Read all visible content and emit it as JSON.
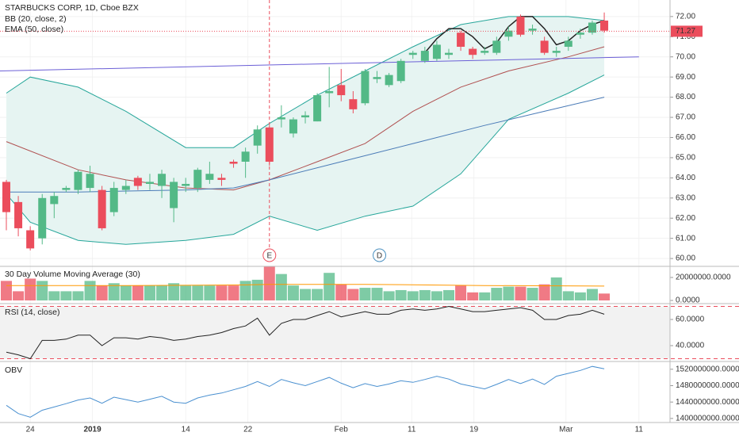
{
  "chart_data": [
    {
      "type": "candlestick",
      "title": "STARBUCKS CORP, 1D, Cboe BZX",
      "legend": [
        "BB (20, close, 2)",
        "EMA (50, close)"
      ],
      "up_color": "#53b987",
      "down_color": "#eb4d5c",
      "open": [
        63.8,
        62.8,
        61.4,
        61.0,
        62.7,
        63.4,
        63.4,
        63.5,
        63.4,
        62.3,
        63.4,
        64.0,
        63.7,
        63.6,
        62.5,
        63.6,
        63.5,
        63.9,
        64.0,
        64.8,
        64.8,
        65.6,
        66.5,
        66.9,
        66.2,
        67.0,
        66.8,
        68.2,
        68.6,
        67.9,
        67.7,
        68.9,
        68.6,
        68.8,
        70.1,
        69.8,
        69.9,
        70.1,
        71.2,
        70.4,
        70.2,
        70.2,
        71.0,
        72.0,
        71.3,
        70.8,
        70.2,
        70.5,
        71.1,
        71.2,
        71.8
      ],
      "high": [
        63.9,
        63.1,
        61.6,
        63.2,
        63.3,
        63.6,
        64.4,
        64.6,
        63.6,
        63.8,
        63.9,
        64.1,
        64.2,
        64.4,
        64.0,
        64.0,
        64.5,
        64.8,
        64.2,
        64.9,
        65.5,
        66.6,
        66.6,
        67.6,
        67.0,
        67.3,
        68.2,
        69.5,
        69.4,
        68.3,
        69.4,
        69.3,
        69.2,
        69.9,
        70.3,
        70.5,
        70.8,
        70.4,
        71.3,
        70.5,
        70.5,
        71.0,
        71.5,
        72.1,
        71.6,
        71.0,
        70.5,
        71.0,
        71.4,
        71.8,
        72.2
      ],
      "low": [
        61.4,
        61.1,
        60.4,
        60.7,
        62.0,
        63.3,
        63.2,
        63.3,
        61.4,
        62.1,
        63.2,
        63.4,
        63.4,
        63.0,
        61.8,
        63.3,
        63.3,
        63.7,
        63.6,
        64.5,
        64.0,
        65.2,
        64.6,
        66.5,
        66.0,
        66.7,
        66.8,
        67.5,
        67.8,
        67.2,
        67.6,
        68.7,
        68.5,
        68.7,
        69.9,
        69.7,
        69.8,
        69.9,
        70.3,
        69.9,
        70.1,
        70.1,
        70.8,
        71.0,
        71.1,
        70.1,
        70.0,
        70.3,
        70.9,
        71.1,
        71.2
      ],
      "close": [
        62.3,
        61.5,
        60.5,
        63.0,
        63.1,
        63.5,
        64.3,
        64.2,
        61.5,
        63.5,
        63.6,
        63.6,
        63.8,
        64.2,
        63.8,
        63.7,
        64.4,
        64.2,
        63.9,
        64.7,
        65.3,
        66.4,
        64.8,
        67.0,
        66.9,
        67.1,
        68.1,
        68.3,
        68.1,
        67.4,
        69.3,
        69.0,
        69.1,
        69.8,
        70.2,
        70.3,
        70.6,
        70.2,
        70.5,
        70.1,
        70.3,
        70.8,
        71.3,
        71.1,
        71.4,
        70.2,
        70.3,
        70.8,
        71.2,
        71.7,
        71.3
      ],
      "band": {
        "color": "#26a69a",
        "fill": "#e6f4f2",
        "x": [
          0,
          2,
          6,
          10,
          15,
          19,
          22,
          26,
          30,
          34,
          38,
          42,
          47,
          50
        ],
        "upper": [
          68.2,
          69.0,
          68.5,
          67.3,
          65.5,
          65.5,
          66.7,
          68.1,
          69.3,
          70.5,
          71.6,
          72.0,
          72.0,
          71.8
        ],
        "lower": [
          63.2,
          61.8,
          60.9,
          60.7,
          60.9,
          61.2,
          62.1,
          61.4,
          62.1,
          62.6,
          64.2,
          66.9,
          68.2,
          69.1
        ]
      },
      "overlays": [
        {
          "color": "#b05050",
          "x": [
            0,
            6,
            10,
            15,
            19,
            22,
            26,
            30,
            34,
            38,
            42,
            47,
            50
          ],
          "values": [
            65.8,
            64.4,
            63.9,
            63.5,
            63.4,
            63.9,
            64.8,
            65.7,
            67.3,
            68.5,
            69.3,
            70.0,
            70.5
          ]
        },
        {
          "color": "#4a7bb7",
          "x": [
            0,
            6,
            15,
            19,
            22,
            28,
            34,
            40,
            45,
            50
          ],
          "values": [
            63.3,
            63.3,
            63.4,
            63.5,
            63.9,
            64.8,
            65.7,
            66.6,
            67.3,
            68.0
          ]
        },
        {
          "color": "#6b5fd6",
          "x": [
            -0.53,
            52.9
          ],
          "values": [
            69.3,
            70.0
          ]
        },
        {
          "color": "#222222",
          "x": [
            35,
            36,
            37,
            38,
            39,
            40,
            41,
            42,
            43,
            44,
            45,
            46,
            47,
            48,
            49,
            50
          ],
          "values": [
            70.2,
            70.9,
            71.4,
            71.4,
            71.0,
            70.4,
            70.7,
            71.5,
            72.0,
            72.0,
            71.4,
            70.6,
            70.8,
            71.3,
            71.6,
            71.8
          ]
        }
      ],
      "last_price": 71.27,
      "last_color": "#eb4d5c",
      "events": [
        {
          "label": "E",
          "x": 22,
          "color": "#eb4d5c"
        },
        {
          "label": "D",
          "x": 31.2,
          "color": "#4a90c0"
        }
      ],
      "ylim": [
        59.65,
        72.82
      ],
      "yticks": [
        {
          "value": 60,
          "label": "60.00"
        },
        {
          "value": 61,
          "label": "61.00"
        },
        {
          "value": 62,
          "label": "62.00"
        },
        {
          "value": 63,
          "label": "63.00"
        },
        {
          "value": 64,
          "label": "64.00"
        },
        {
          "value": 65,
          "label": "65.00"
        },
        {
          "value": 66,
          "label": "66.00"
        },
        {
          "value": 67,
          "label": "67.00"
        },
        {
          "value": 68,
          "label": "68.00"
        },
        {
          "value": 69,
          "label": "69.00"
        },
        {
          "value": 70,
          "label": "70.00"
        },
        {
          "value": 71,
          "label": "71.00"
        },
        {
          "value": 72,
          "label": "72.00"
        }
      ]
    },
    {
      "type": "bar",
      "title": "30 Day Volume Moving Average (30)",
      "values": [
        17000000,
        8000000,
        19000000,
        17000000,
        8000000,
        8000000,
        8000000,
        17000000,
        13000000,
        15000000,
        13000000,
        13000000,
        13000000,
        13000000,
        15000000,
        13000000,
        13000000,
        13000000,
        13000000,
        13000000,
        17000000,
        18000000,
        30000000,
        23000000,
        13000000,
        10000000,
        10000000,
        24000000,
        14000000,
        10000000,
        11000000,
        11000000,
        8000000,
        9000000,
        8000000,
        9000000,
        8000000,
        9000000,
        13000000,
        7000000,
        7000000,
        11000000,
        12000000,
        12000000,
        11000000,
        14000000,
        20000000,
        8000000,
        7000000,
        10000000,
        6000000
      ],
      "ma": {
        "color": "#ff9800",
        "x": [
          0,
          10,
          20,
          22,
          30,
          40,
          50
        ],
        "values": [
          13000000,
          13000000,
          13500000,
          14000000,
          14000000,
          13000000,
          12500000
        ]
      },
      "ylim": [
        -2070000,
        28970000
      ],
      "yticks": [
        {
          "value": 0,
          "label": "0.0000"
        },
        {
          "value": 20000000,
          "label": "20000000.0000"
        }
      ]
    },
    {
      "type": "line",
      "title": "RSI (14, close)",
      "color": "#222222",
      "values": [
        35,
        33,
        30,
        44,
        44,
        45,
        48,
        48,
        40,
        46,
        46,
        45,
        47,
        46,
        44,
        45,
        47,
        48,
        50,
        53,
        55,
        61,
        48,
        57,
        60,
        60,
        63,
        66,
        62,
        64,
        66,
        64,
        64,
        67,
        68,
        67,
        68,
        70,
        68,
        66,
        66,
        67,
        68,
        69,
        67,
        60,
        60,
        63,
        64,
        67,
        64
      ],
      "levels": [
        70,
        30
      ],
      "level_color": "#eb4d5c",
      "fill": "#f2f2f2",
      "ylim": [
        28.5,
        71.5
      ],
      "yticks": [
        {
          "value": 40,
          "label": "40.0000"
        },
        {
          "value": 60,
          "label": "60.0000"
        }
      ]
    },
    {
      "type": "line",
      "title": "OBV",
      "color": "#4a90d0",
      "values": [
        1432,
        1412,
        1403,
        1420,
        1428,
        1436,
        1445,
        1450,
        1437,
        1452,
        1446,
        1440,
        1447,
        1454,
        1440,
        1437,
        1450,
        1457,
        1462,
        1470,
        1478,
        1490,
        1478,
        1495,
        1487,
        1480,
        1490,
        1500,
        1486,
        1475,
        1485,
        1478,
        1484,
        1492,
        1488,
        1495,
        1503,
        1496,
        1484,
        1478,
        1472,
        1483,
        1495,
        1485,
        1496,
        1483,
        1503,
        1510,
        1517,
        1527,
        1521
      ],
      "value_scale": 1000000,
      "ylim": [
        1392,
        1537
      ],
      "yticks": [
        {
          "value": 1400,
          "label": "1400000000.0000"
        },
        {
          "value": 1440,
          "label": "1440000000.0000"
        },
        {
          "value": 1480,
          "label": "1480000000.0000"
        },
        {
          "value": 1520,
          "label": "1520000000.0000"
        }
      ],
      "xlim": [
        -0.53,
        55.5
      ],
      "xticks": [
        {
          "value": 2,
          "label": "24"
        },
        {
          "value": 7.2,
          "label": "2019"
        },
        {
          "value": 15,
          "label": "14"
        },
        {
          "value": 20.2,
          "label": "22"
        },
        {
          "value": 28,
          "label": "Feb"
        },
        {
          "value": 33.9,
          "label": "11"
        },
        {
          "value": 39.1,
          "label": "19"
        },
        {
          "value": 46.8,
          "label": "Mar"
        },
        {
          "value": 52.9,
          "label": "11"
        }
      ]
    }
  ]
}
